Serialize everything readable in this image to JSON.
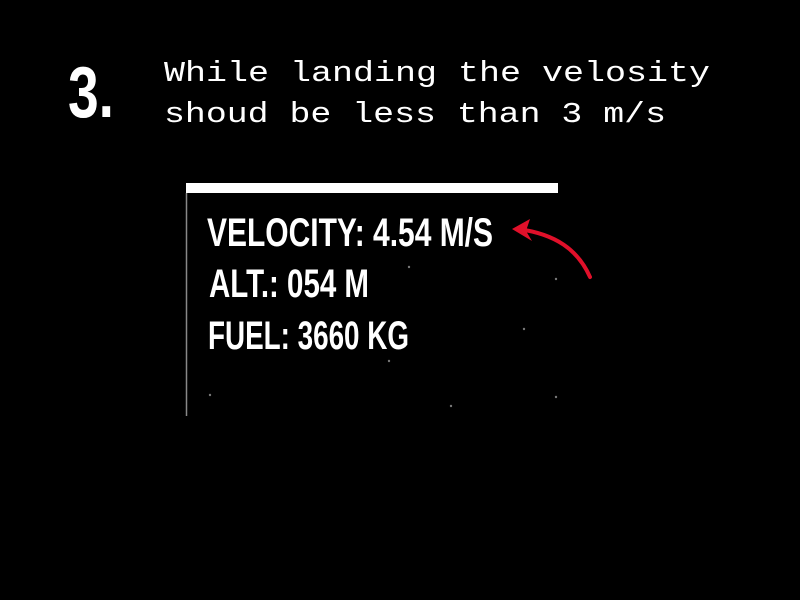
{
  "step": {
    "number": "3.",
    "lines": [
      "While landing the velosity",
      "shoud be less than 3 m/s"
    ]
  },
  "hud": {
    "velocity": "VELOCITY: 4.54 M/S",
    "altitude": "ALT.: 054 M",
    "fuel": "FUEL: 3660 KG"
  }
}
